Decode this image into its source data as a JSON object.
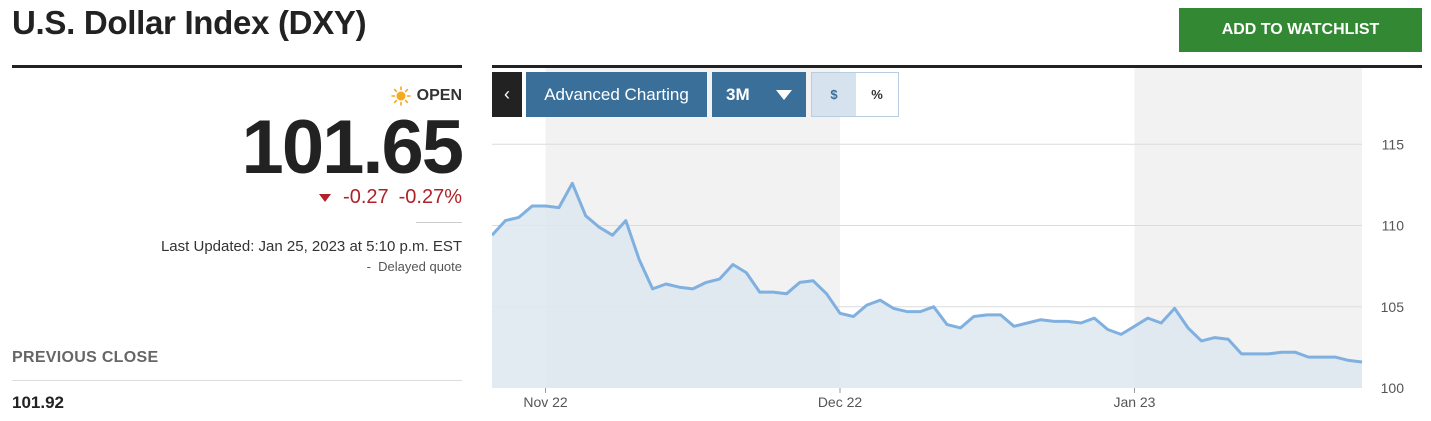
{
  "header": {
    "title": "U.S. Dollar Index (DXY)",
    "watchlist_label": "ADD TO WATCHLIST"
  },
  "quote": {
    "status": "OPEN",
    "status_icon": "sun-icon",
    "price": "101.65",
    "change": "-0.27",
    "change_pct": "-0.27%",
    "direction_icon": "down-triangle-icon",
    "last_updated": "Last Updated: Jan 25, 2023 at 5:10 p.m. EST",
    "delayed": "Delayed quote",
    "previous_close_label": "PREVIOUS CLOSE",
    "previous_close_value": "101.92"
  },
  "toolbar": {
    "back_icon": "chevron-left-icon",
    "advanced_label": "Advanced Charting",
    "range_label": "3M",
    "dollar_label": "$",
    "percent_label": "%"
  },
  "colors": {
    "accent": "#3a6f9a",
    "watchlist": "#338833",
    "negative": "#b0222a",
    "line": "#7fb0e0",
    "area": "#dde8f0"
  },
  "chart_data": {
    "type": "area",
    "title": "",
    "xlabel": "",
    "ylabel": "",
    "ylim": [
      100,
      116
    ],
    "yticks": [
      100,
      105,
      110,
      115
    ],
    "xticks": [
      {
        "label": "Nov 22",
        "index": 4
      },
      {
        "label": "Dec 22",
        "index": 26
      },
      {
        "label": "Jan 23",
        "index": 48
      }
    ],
    "grid": true,
    "series": [
      {
        "values": [
          109.4,
          110.3,
          110.5,
          111.2,
          111.2,
          111.1,
          112.6,
          110.6,
          109.9,
          109.4,
          110.3,
          107.9,
          106.1,
          106.4,
          106.2,
          106.1,
          106.5,
          106.7,
          107.6,
          107.1,
          105.9,
          105.9,
          105.8,
          106.5,
          106.6,
          105.8,
          104.6,
          104.4,
          105.1,
          105.4,
          104.9,
          104.7,
          104.7,
          105.0,
          103.9,
          103.7,
          104.4,
          104.5,
          104.5,
          103.8,
          104.0,
          104.2,
          104.1,
          104.1,
          104.0,
          104.3,
          103.6,
          103.3,
          103.8,
          104.3,
          104.0,
          104.9,
          103.7,
          102.9,
          103.1,
          103.0,
          102.1,
          102.1,
          102.1,
          102.2,
          102.2,
          101.9,
          101.9,
          101.9,
          101.7,
          101.6
        ]
      }
    ],
    "shaded_bands": [
      {
        "from_index": 4,
        "to_index": 26
      },
      {
        "from_index": 48,
        "to_index": 65
      }
    ]
  }
}
